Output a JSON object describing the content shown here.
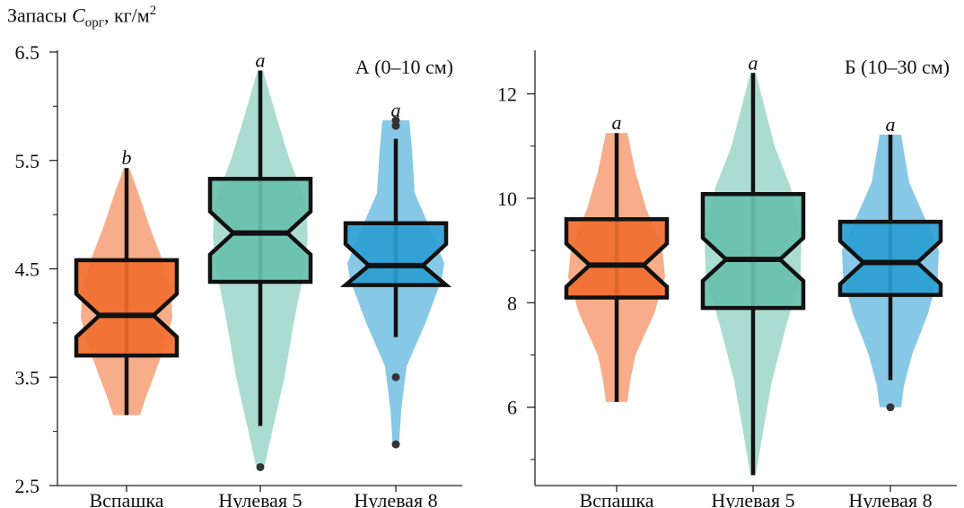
{
  "ylabel": {
    "prefix": "Запасы ",
    "symbol": "C",
    "subscript": "орг",
    "unit": ", кг/м",
    "superscript": "2"
  },
  "colors": {
    "Вспашка": "#f06e2e",
    "Нулевая 5": "#68c0ac",
    "Нулевая 8": "#2a9dd1"
  },
  "chart_data": [
    {
      "type": "box",
      "title": "А (0–10 см)",
      "categories": [
        "Вспашка",
        "Нулевая  5",
        "Нулевая  8"
      ],
      "ylim": [
        2.5,
        6.5
      ],
      "yticks": [
        2.5,
        3.5,
        4.5,
        5.5,
        6.5
      ],
      "ytick_labels": [
        "2.5",
        "3.5",
        "4.5",
        "5.5",
        "6.5"
      ],
      "minor_ticks": [
        3.0,
        4.0,
        5.0,
        6.0
      ],
      "series": [
        {
          "category": "Вспашка",
          "letter": "b",
          "whisker_low": 3.15,
          "q1": 3.7,
          "median": 4.07,
          "q3": 4.58,
          "whisker_high": 5.43,
          "outliers": [],
          "violin": [
            [
              3.15,
              0.25
            ],
            [
              3.3,
              0.35
            ],
            [
              3.5,
              0.5
            ],
            [
              3.8,
              0.72
            ],
            [
              4.05,
              0.85
            ],
            [
              4.3,
              0.82
            ],
            [
              4.6,
              0.65
            ],
            [
              4.9,
              0.42
            ],
            [
              5.2,
              0.22
            ],
            [
              5.43,
              0.05
            ]
          ]
        },
        {
          "category": "Нулевая  5",
          "letter": "a",
          "whisker_low": 3.05,
          "q1": 4.38,
          "median": 4.83,
          "q3": 5.33,
          "whisker_high": 6.33,
          "outliers": [
            2.67
          ],
          "violin": [
            [
              2.68,
              0.08
            ],
            [
              3.0,
              0.22
            ],
            [
              3.5,
              0.45
            ],
            [
              4.0,
              0.62
            ],
            [
              4.5,
              0.82
            ],
            [
              4.8,
              0.88
            ],
            [
              5.1,
              0.85
            ],
            [
              5.5,
              0.55
            ],
            [
              5.9,
              0.3
            ],
            [
              6.33,
              0.05
            ]
          ]
        },
        {
          "category": "Нулевая  8",
          "letter": "a",
          "whisker_low": 3.87,
          "q1": 4.35,
          "median": 4.53,
          "q3": 4.92,
          "whisker_high": 5.7,
          "outliers": [
            3.5,
            2.88,
            5.82,
            5.87
          ],
          "violin": [
            [
              2.88,
              0.06
            ],
            [
              3.2,
              0.1
            ],
            [
              3.6,
              0.2
            ],
            [
              4.0,
              0.55
            ],
            [
              4.4,
              0.85
            ],
            [
              4.55,
              0.9
            ],
            [
              4.8,
              0.7
            ],
            [
              5.2,
              0.35
            ],
            [
              5.6,
              0.3
            ],
            [
              5.87,
              0.25
            ]
          ]
        }
      ]
    },
    {
      "type": "box",
      "title": "Б (10–30 см)",
      "categories": [
        "Вспашка",
        "Нулевая  5",
        "Нулевая  8"
      ],
      "ylim": [
        4.5,
        12.8
      ],
      "yticks": [
        6,
        8,
        10,
        12
      ],
      "ytick_labels": [
        "6",
        "8",
        "10",
        "12"
      ],
      "minor_ticks": [
        5,
        7,
        9,
        11
      ],
      "series": [
        {
          "category": "Вспашка",
          "letter": "a",
          "whisker_low": 6.1,
          "q1": 8.1,
          "median": 8.72,
          "q3": 9.6,
          "whisker_high": 11.25,
          "outliers": [],
          "violin": [
            [
              6.1,
              0.2
            ],
            [
              6.5,
              0.25
            ],
            [
              7.0,
              0.35
            ],
            [
              7.8,
              0.7
            ],
            [
              8.5,
              0.9
            ],
            [
              9.0,
              0.85
            ],
            [
              9.8,
              0.55
            ],
            [
              10.5,
              0.35
            ],
            [
              11.0,
              0.25
            ],
            [
              11.25,
              0.2
            ]
          ]
        },
        {
          "category": "Нулевая  5",
          "letter": "a",
          "whisker_low": 4.7,
          "q1": 7.9,
          "median": 8.83,
          "q3": 10.08,
          "whisker_high": 12.4,
          "outliers": [],
          "violin": [
            [
              4.7,
              0.05
            ],
            [
              5.5,
              0.18
            ],
            [
              6.5,
              0.35
            ],
            [
              7.5,
              0.6
            ],
            [
              8.5,
              0.88
            ],
            [
              9.3,
              0.9
            ],
            [
              10.2,
              0.7
            ],
            [
              11.0,
              0.4
            ],
            [
              11.8,
              0.2
            ],
            [
              12.4,
              0.05
            ]
          ]
        },
        {
          "category": "Нулевая  8",
          "letter": "a",
          "whisker_low": 6.52,
          "q1": 8.15,
          "median": 8.77,
          "q3": 9.55,
          "whisker_high": 11.22,
          "outliers": [
            6.0
          ],
          "violin": [
            [
              6.0,
              0.2
            ],
            [
              6.4,
              0.25
            ],
            [
              7.0,
              0.4
            ],
            [
              7.8,
              0.7
            ],
            [
              8.5,
              0.88
            ],
            [
              9.0,
              0.9
            ],
            [
              9.6,
              0.65
            ],
            [
              10.3,
              0.35
            ],
            [
              10.9,
              0.25
            ],
            [
              11.22,
              0.2
            ]
          ]
        }
      ]
    }
  ]
}
